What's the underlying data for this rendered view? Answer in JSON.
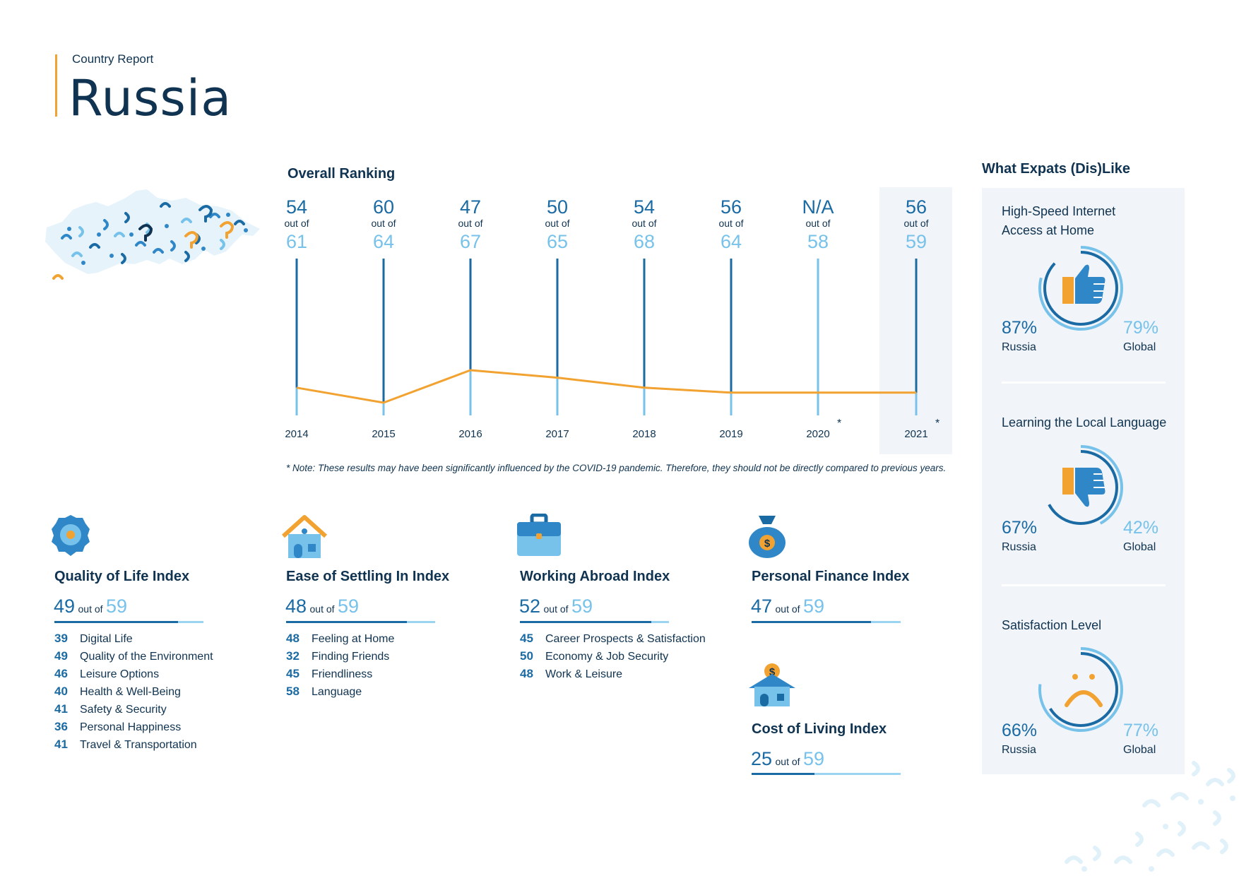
{
  "header": {
    "subtitle": "Country Report",
    "title": "Russia"
  },
  "overall_ranking": {
    "heading": "Overall Ranking",
    "out_of_label": "out of",
    "years": [
      {
        "year": "2014",
        "rank": "54",
        "total": "61",
        "star": ""
      },
      {
        "year": "2015",
        "rank": "60",
        "total": "64",
        "star": ""
      },
      {
        "year": "2016",
        "rank": "47",
        "total": "67",
        "star": ""
      },
      {
        "year": "2017",
        "rank": "50",
        "total": "65",
        "star": ""
      },
      {
        "year": "2018",
        "rank": "54",
        "total": "68",
        "star": ""
      },
      {
        "year": "2019",
        "rank": "56",
        "total": "64",
        "star": ""
      },
      {
        "year": "2020",
        "rank": "N/A",
        "total": "58",
        "star": "*"
      },
      {
        "year": "2021",
        "rank": "56",
        "total": "59",
        "star": "*"
      }
    ],
    "note": "* Note: These results may have been significantly influenced by the COVID-19 pandemic. Therefore, they should not be directly compared to previous years."
  },
  "chart_data": {
    "type": "line",
    "x": [
      "2014",
      "2015",
      "2016",
      "2017",
      "2018",
      "2019",
      "2020",
      "2021"
    ],
    "series": [
      {
        "values": [
          54,
          60,
          47,
          50,
          54,
          56,
          null,
          56
        ]
      }
    ]
  },
  "indices": {
    "quality_of_life": {
      "title": "Quality of Life Index",
      "rank": "49",
      "out_of": "out of",
      "total": "59",
      "fraction": 0.83,
      "items": [
        {
          "n": "39",
          "label": "Digital Life"
        },
        {
          "n": "49",
          "label": "Quality of the Environment"
        },
        {
          "n": "46",
          "label": "Leisure Options"
        },
        {
          "n": "40",
          "label": "Health & Well-Being"
        },
        {
          "n": "41",
          "label": "Safety & Security"
        },
        {
          "n": "36",
          "label": "Personal Happiness"
        },
        {
          "n": "41",
          "label": "Travel & Transportation"
        }
      ]
    },
    "ease_of_settling_in": {
      "title": "Ease of Settling In Index",
      "rank": "48",
      "out_of": "out of",
      "total": "59",
      "fraction": 0.81,
      "items": [
        {
          "n": "48",
          "label": "Feeling at Home"
        },
        {
          "n": "32",
          "label": "Finding Friends"
        },
        {
          "n": "45",
          "label": "Friendliness"
        },
        {
          "n": "58",
          "label": "Language"
        }
      ]
    },
    "working_abroad": {
      "title": "Working Abroad Index",
      "rank": "52",
      "out_of": "out of",
      "total": "59",
      "fraction": 0.88,
      "items": [
        {
          "n": "45",
          "label": "Career Prospects & Satisfaction"
        },
        {
          "n": "50",
          "label": "Economy & Job Security"
        },
        {
          "n": "48",
          "label": "Work & Leisure"
        }
      ]
    },
    "personal_finance": {
      "title": "Personal Finance Index",
      "rank": "47",
      "out_of": "out of",
      "total": "59",
      "fraction": 0.8
    },
    "cost_of_living": {
      "title": "Cost of Living Index",
      "rank": "25",
      "out_of": "out of",
      "total": "59",
      "fraction": 0.42
    }
  },
  "dislike": {
    "heading": "What Expats (Dis)Like",
    "items": [
      {
        "label": "High-Speed Internet Access at Home",
        "russia": "87%",
        "global": "79%",
        "russia_label": "Russia",
        "global_label": "Global",
        "russia_value": 0.87,
        "global_value": 0.79,
        "icon": "thumbs-up-icon"
      },
      {
        "label": "Learning the Local Language",
        "russia": "67%",
        "global": "42%",
        "russia_label": "Russia",
        "global_label": "Global",
        "russia_value": 0.67,
        "global_value": 0.42,
        "icon": "thumbs-down-icon"
      },
      {
        "label": "Satisfaction Level",
        "russia": "66%",
        "global": "77%",
        "russia_label": "Russia",
        "global_label": "Global",
        "russia_value": 0.66,
        "global_value": 0.77,
        "icon": "sad-face-icon"
      }
    ]
  },
  "colors": {
    "navy": "#0f3350",
    "blue": "#1a6aa3",
    "light_blue": "#77c2ea",
    "orange": "#f2a230",
    "panel": "#f1f4f8"
  }
}
